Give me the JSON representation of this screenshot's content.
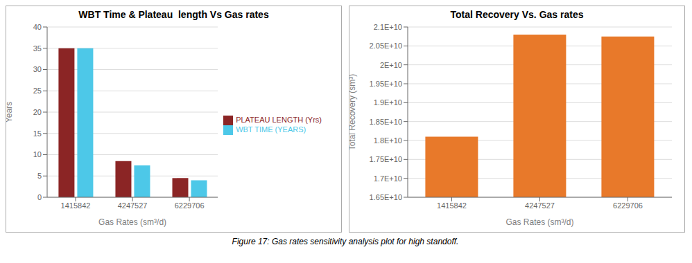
{
  "chart_data": [
    {
      "type": "bar",
      "title": "WBT Time & Plateau  length Vs Gas rates",
      "xlabel": "Gas Rates (sm³/d)",
      "ylabel": "Years",
      "categories": [
        "1415842",
        "4247527",
        "6229706"
      ],
      "series": [
        {
          "name": "PLATEAU LENGTH (Yrs)",
          "color": "#8B2525",
          "values": [
            35,
            8.5,
            4.5
          ]
        },
        {
          "name": "WBT TIME  (YEARS)",
          "color": "#4DC8E8",
          "values": [
            35,
            7.5,
            4.0
          ]
        }
      ],
      "ylim": [
        0,
        40
      ],
      "yticks": [
        0,
        5,
        10,
        15,
        20,
        25,
        30,
        35,
        40
      ],
      "grid": true,
      "legend": "right"
    },
    {
      "type": "bar",
      "title": "Total Recovery Vs. Gas rates",
      "xlabel": "Gas Rates (sm³/d)",
      "ylabel": "Total Recovery (sm³)",
      "categories": [
        "1415842",
        "4247527",
        "6229706"
      ],
      "values": [
        18100000000.0,
        20800000000.0,
        20750000000.0
      ],
      "color": "#E8792A",
      "ylim": [
        16500000000.0,
        21000000000.0
      ],
      "yticks": [
        {
          "value": 16500000000.0,
          "label": "1.65E+10"
        },
        {
          "value": 17000000000.0,
          "label": "1.7E+10"
        },
        {
          "value": 17500000000.0,
          "label": "1.75E+10"
        },
        {
          "value": 18000000000.0,
          "label": "1.8E+10"
        },
        {
          "value": 18500000000.0,
          "label": "1.85E+10"
        },
        {
          "value": 19000000000.0,
          "label": "1.9E+10"
        },
        {
          "value": 19500000000.0,
          "label": "1.95E+10"
        },
        {
          "value": 20000000000.0,
          "label": "2E+10"
        },
        {
          "value": 20500000000.0,
          "label": "2.05E+10"
        },
        {
          "value": 21000000000.0,
          "label": "2.1E+10"
        }
      ],
      "grid": true
    }
  ],
  "caption": "Figure 17: Gas rates sensitivity analysis plot for high standoff."
}
